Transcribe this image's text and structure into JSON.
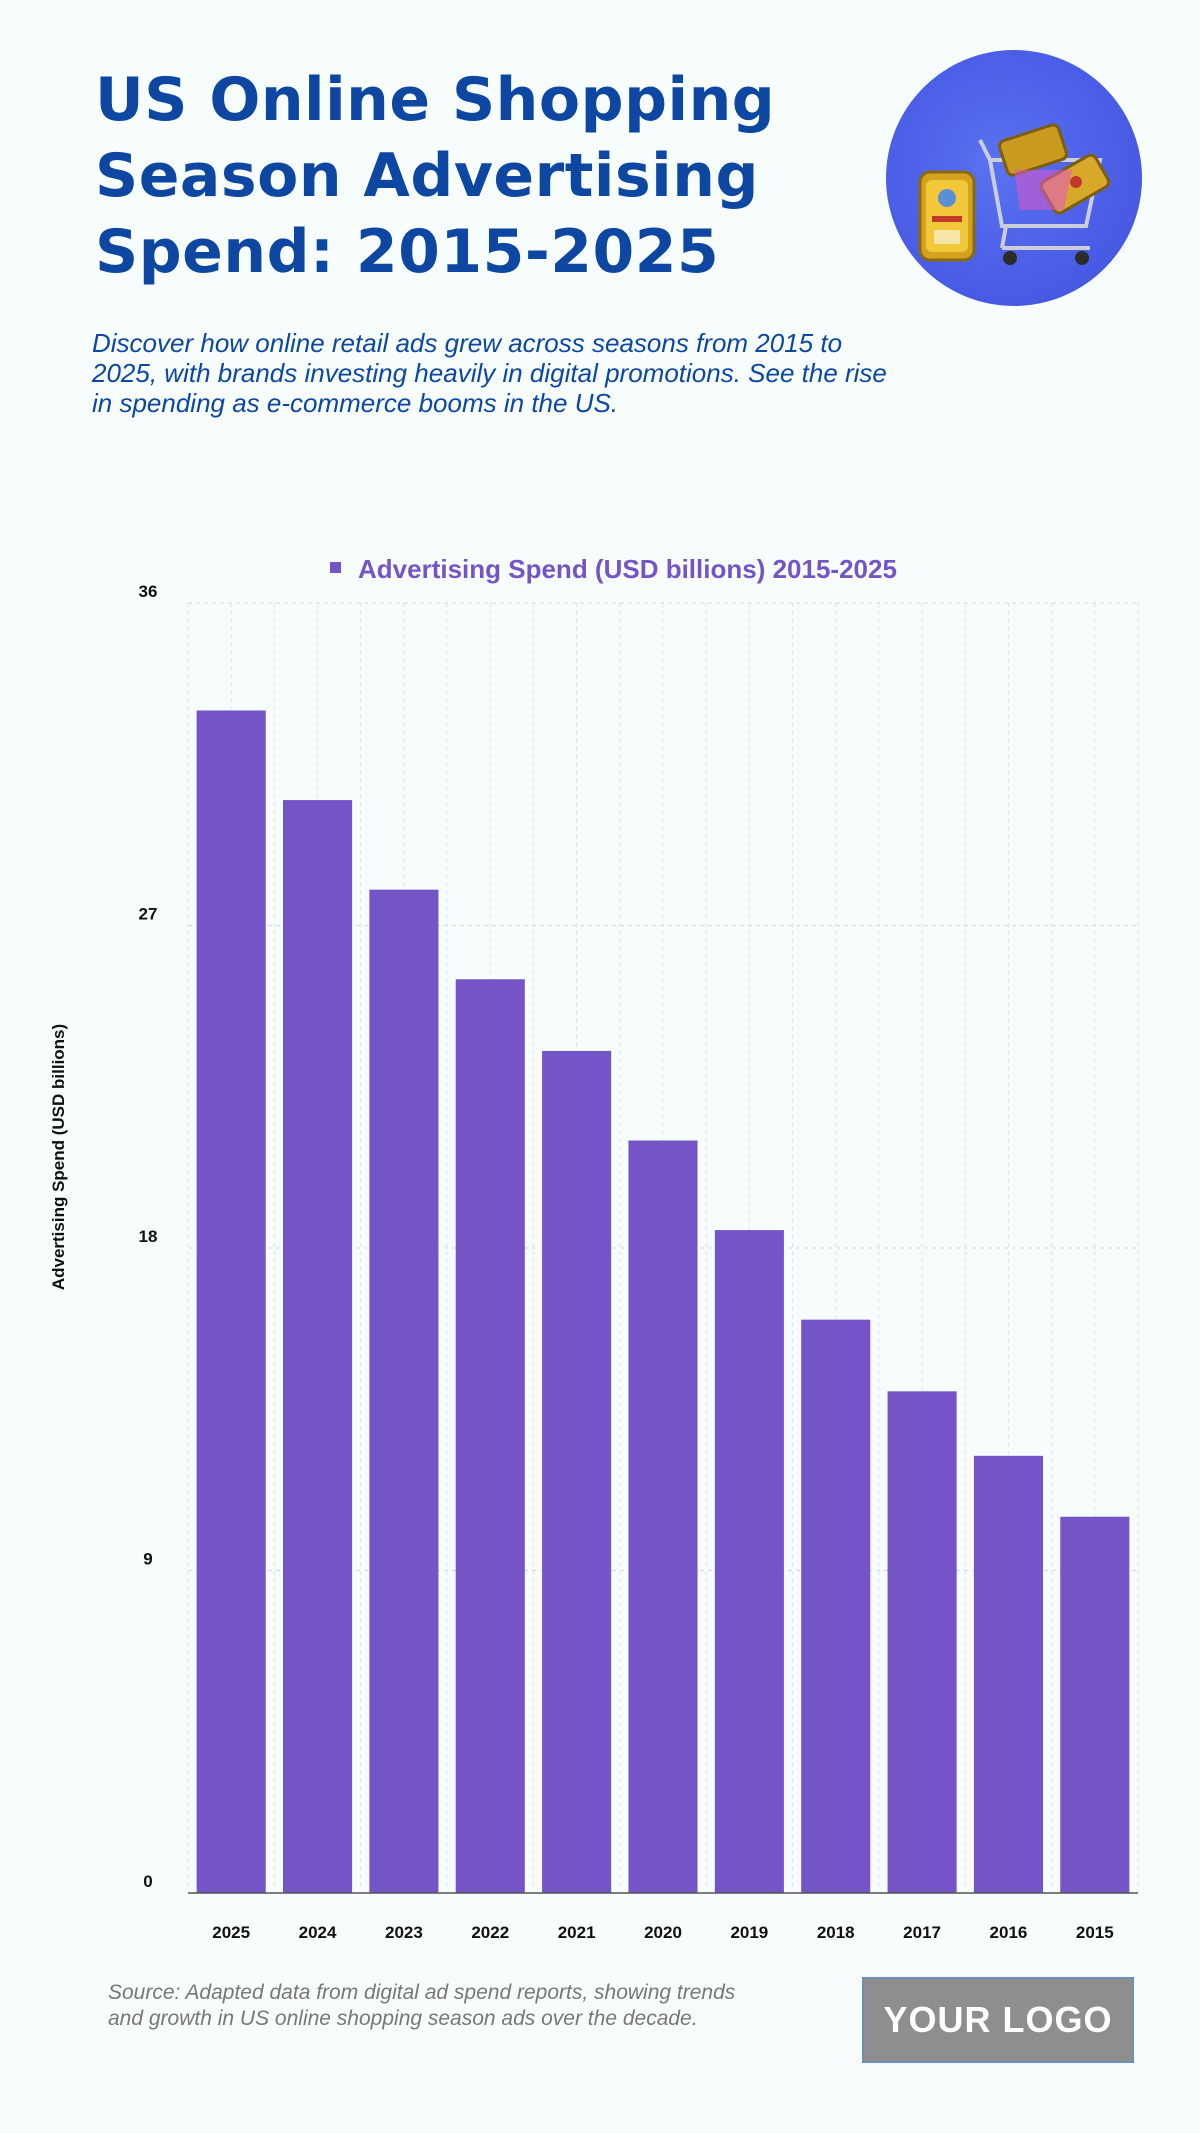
{
  "header": {
    "title": "US Online Shopping Season Advertising Spend: 2015-2025",
    "subtitle": "Discover how online retail ads grew across seasons from 2015 to 2025, with brands investing heavily in digital promotions. See the rise in spending as e-commerce booms in the US."
  },
  "footer": {
    "source": "Source: Adapted data from digital ad spend reports, showing trends and growth in US online shopping season ads over the decade.",
    "logo": "YOUR LOGO"
  },
  "colors": {
    "bar": "#7455c7",
    "title": "#0d47a1",
    "legend_text": "#7455c7"
  },
  "chart_data": {
    "type": "bar",
    "title": "",
    "legend": [
      "Advertising Spend (USD billions) 2015-2025"
    ],
    "xlabel": "",
    "ylabel": "Advertising Spend (USD billions)",
    "ylim": [
      0,
      36
    ],
    "yticks": [
      0,
      9,
      18,
      27,
      36
    ],
    "grid": true,
    "categories": [
      "2025",
      "2024",
      "2023",
      "2022",
      "2021",
      "2020",
      "2019",
      "2018",
      "2017",
      "2016",
      "2015"
    ],
    "values": [
      33,
      30.5,
      28,
      25.5,
      23.5,
      21,
      18.5,
      16,
      14,
      12.2,
      10.5
    ]
  }
}
